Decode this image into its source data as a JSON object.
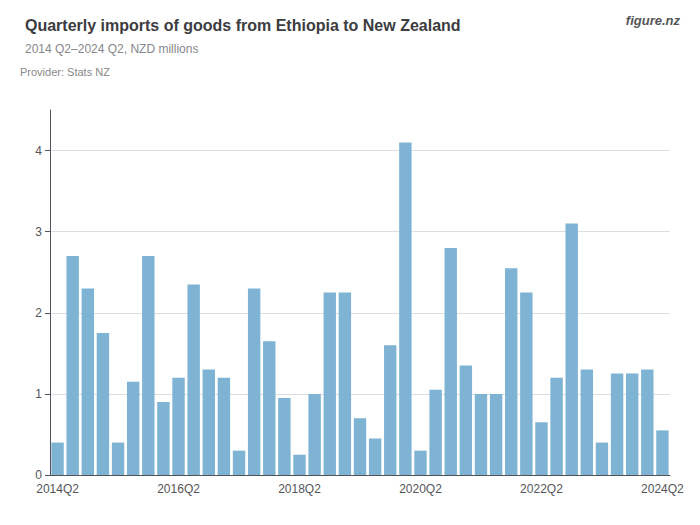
{
  "chart_data": {
    "type": "bar",
    "title": "Quarterly imports of goods from Ethiopia to New Zealand",
    "subtitle": "2014 Q2–2024 Q2, NZD millions",
    "annotations": [
      "Provider: Stats NZ",
      "figure.nz"
    ],
    "categories": [
      "2014Q2",
      null,
      null,
      null,
      null,
      null,
      null,
      null,
      "2016Q2",
      null,
      null,
      null,
      null,
      null,
      null,
      null,
      "2018Q2",
      null,
      null,
      null,
      null,
      null,
      null,
      null,
      "2020Q2",
      null,
      null,
      null,
      null,
      null,
      null,
      null,
      "2022Q2",
      null,
      null,
      null,
      null,
      null,
      null,
      null,
      "2024Q2"
    ],
    "values": [
      0.4,
      2.7,
      2.3,
      1.75,
      0.4,
      1.15,
      2.7,
      0.9,
      1.2,
      2.35,
      1.3,
      1.2,
      0.3,
      2.3,
      1.65,
      0.95,
      0.25,
      1.0,
      2.25,
      2.25,
      0.7,
      0.45,
      1.6,
      4.1,
      0.3,
      1.05,
      2.8,
      1.35,
      1.0,
      1.0,
      2.55,
      2.25,
      0.65,
      1.2,
      3.1,
      1.3,
      0.4,
      1.25,
      1.25,
      1.3,
      0.55
    ],
    "color": "#7EB3D4",
    "ylim": [
      0,
      4.5
    ],
    "yticks": [
      0,
      1,
      2,
      3,
      4
    ],
    "grid": true
  }
}
